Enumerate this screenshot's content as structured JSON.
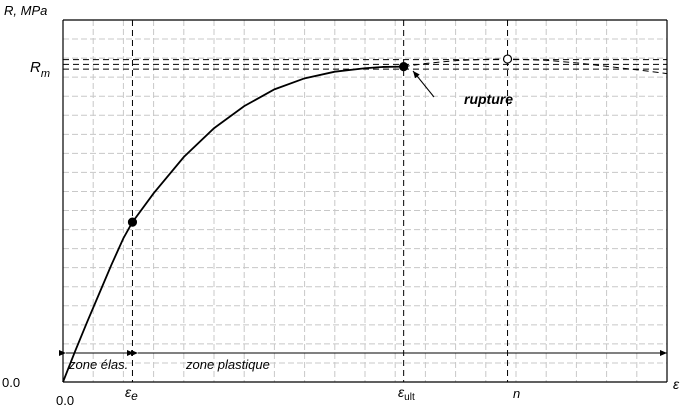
{
  "chart_data": {
    "type": "line",
    "title": "",
    "ylabel": "R, MPa",
    "xlabel": "ε",
    "x_tick_labels": {
      "origin_x": "0.0",
      "origin_y": "0.0",
      "eps_e": "ε",
      "eps_e_sub": "e",
      "eps_ult": "ε",
      "eps_ult_sub": "ult",
      "n": "n"
    },
    "y_tick_labels": {
      "rm": "R",
      "rm_sub": "m"
    },
    "zones": {
      "elastic": "zone élas.",
      "plastic": "zone plastique"
    },
    "annotation": "rupture",
    "xlim": [
      0,
      10
    ],
    "ylim": [
      0,
      1.08
    ],
    "key_x": {
      "eps_e": 1.15,
      "eps_ult": 5.64,
      "n": 7.36
    },
    "rm_lines": [
      0.99,
      1.005,
      1.02
    ],
    "series": [
      {
        "style": "solid",
        "x": [
          0,
          0.2,
          0.4,
          0.6,
          0.8,
          1.0,
          1.15,
          1.5,
          2.0,
          2.5,
          3.0,
          3.5,
          4.0,
          4.5,
          5.0,
          5.3,
          5.64
        ],
        "y": [
          0,
          0.097,
          0.19,
          0.28,
          0.37,
          0.455,
          0.506,
          0.597,
          0.712,
          0.803,
          0.873,
          0.926,
          0.961,
          0.982,
          0.993,
          0.997,
          0.998
        ]
      },
      {
        "style": "dashed",
        "x": [
          5.64,
          6.0,
          6.5,
          7.0,
          7.36,
          8.0,
          8.5,
          9.0,
          9.5,
          10.0
        ],
        "y": [
          0.998,
          1.008,
          1.017,
          1.021,
          1.022,
          1.018,
          1.01,
          0.999,
          0.988,
          0.976
        ]
      }
    ],
    "points": [
      {
        "x": 1.15,
        "y": 0.506,
        "filled": true
      },
      {
        "x": 5.64,
        "y": 0.998,
        "filled": true
      },
      {
        "x": 7.36,
        "y": 1.022,
        "filled": false
      }
    ],
    "grid": true
  }
}
